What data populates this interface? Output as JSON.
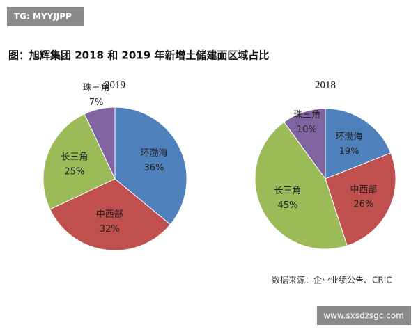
{
  "header_tag": "TG: MYYJJPP",
  "title": "图：旭辉集团 2018 和 2019 年新增土储建面区域占比",
  "chart_data": [
    {
      "type": "pie",
      "title": "2019",
      "categories": [
        "环渤海",
        "中西部",
        "长三角",
        "珠三角"
      ],
      "values": [
        36,
        32,
        25,
        7
      ],
      "value_labels": [
        "36%",
        "32%",
        "25%",
        "7%"
      ],
      "colors": [
        "#4f81bd",
        "#c0504d",
        "#9bbb59",
        "#8064a2"
      ]
    },
    {
      "type": "pie",
      "title": "2018",
      "categories": [
        "环渤海",
        "中西部",
        "长三角",
        "珠三角"
      ],
      "values": [
        19,
        26,
        45,
        10
      ],
      "value_labels": [
        "19%",
        "26%",
        "45%",
        "10%"
      ],
      "colors": [
        "#4f81bd",
        "#c0504d",
        "#9bbb59",
        "#8064a2"
      ]
    }
  ],
  "source": "数据来源：企业业绩公告、CRIC",
  "footer_tag": "www.sxsdzsgc.com"
}
